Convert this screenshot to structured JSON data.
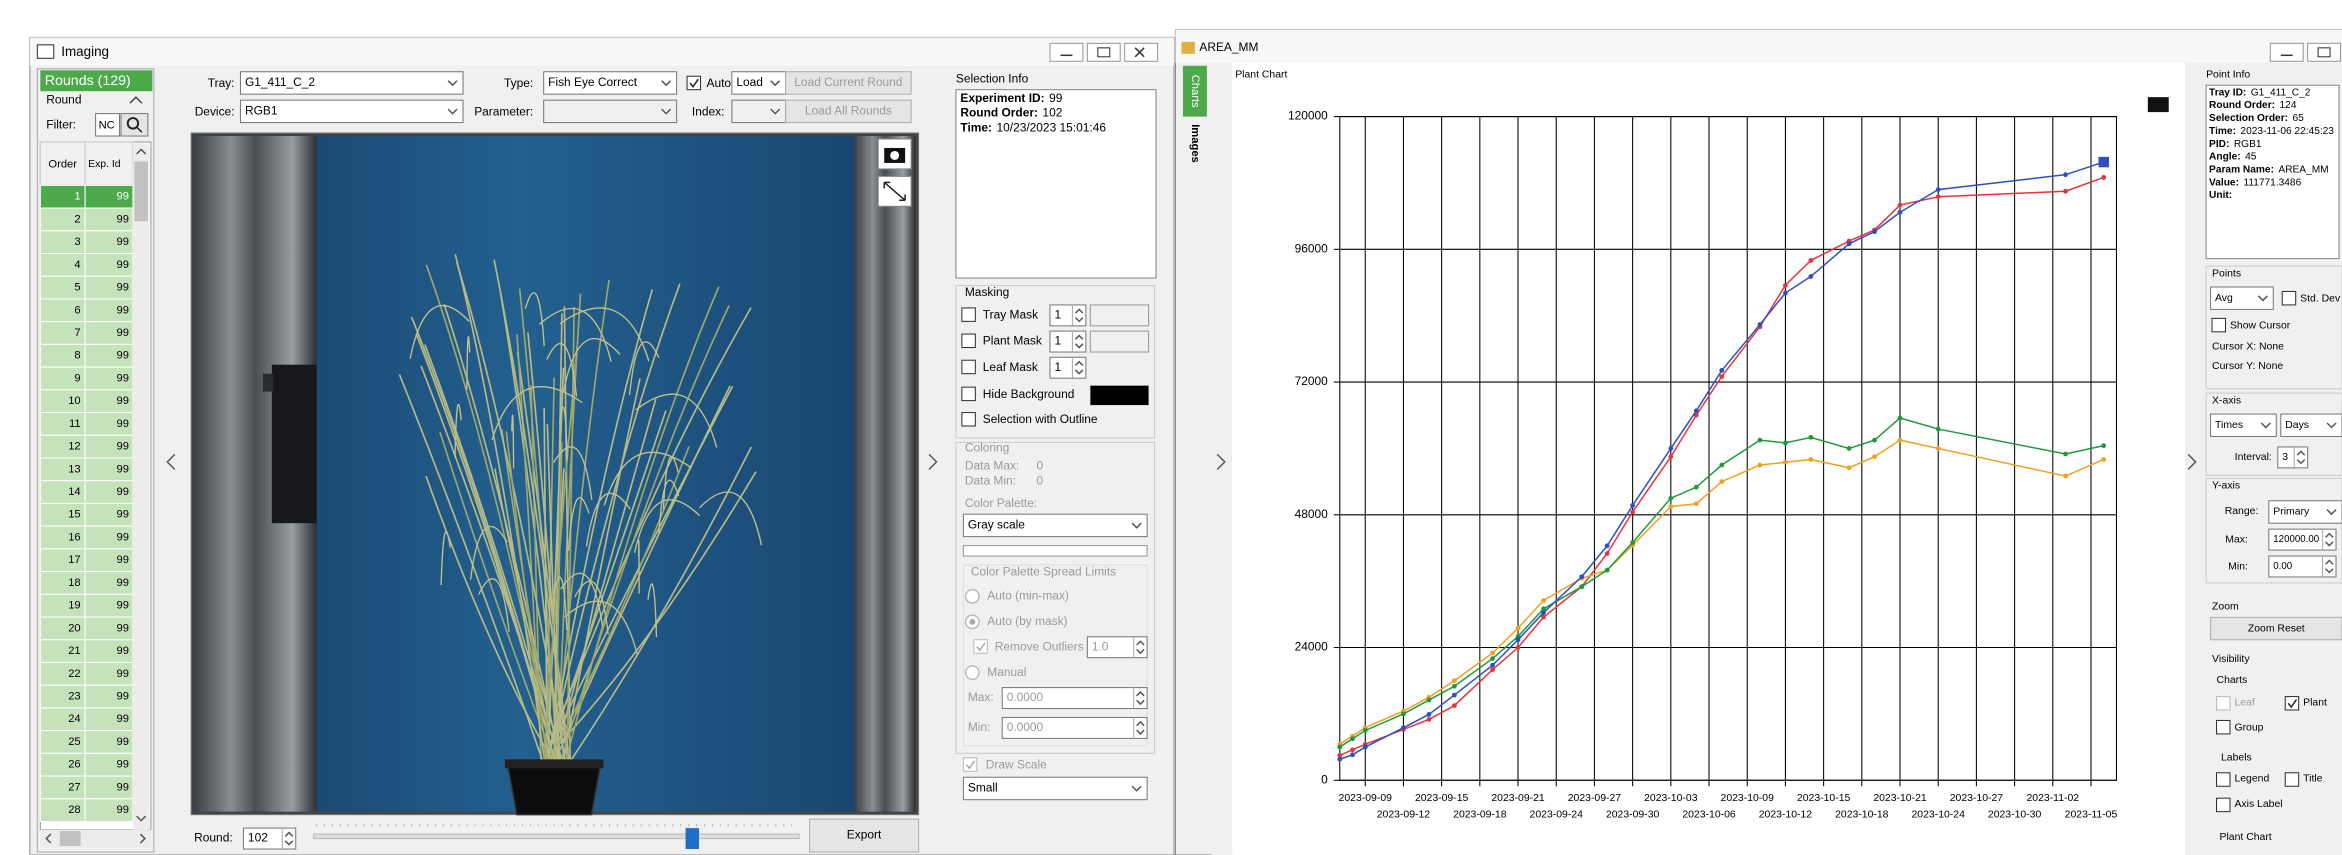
{
  "imaging": {
    "title": "Imaging",
    "rounds": {
      "header": "Rounds (129)",
      "label": "Round",
      "filter_label": "Filter:",
      "filter_value": "NC",
      "columns": [
        "Order",
        "Exp. Id"
      ],
      "rows": [
        [
          1,
          99
        ],
        [
          2,
          99
        ],
        [
          3,
          99
        ],
        [
          4,
          99
        ],
        [
          5,
          99
        ],
        [
          6,
          99
        ],
        [
          7,
          99
        ],
        [
          8,
          99
        ],
        [
          9,
          99
        ],
        [
          10,
          99
        ],
        [
          11,
          99
        ],
        [
          12,
          99
        ],
        [
          13,
          99
        ],
        [
          14,
          99
        ],
        [
          15,
          99
        ],
        [
          16,
          99
        ],
        [
          17,
          99
        ],
        [
          18,
          99
        ],
        [
          19,
          99
        ],
        [
          20,
          99
        ],
        [
          21,
          99
        ],
        [
          22,
          99
        ],
        [
          23,
          99
        ],
        [
          24,
          99
        ],
        [
          25,
          99
        ],
        [
          26,
          99
        ],
        [
          27,
          99
        ],
        [
          28,
          99
        ]
      ]
    },
    "tray_label": "Tray:",
    "tray": "G1_411_C_2",
    "type_label": "Type:",
    "type": "Fish Eye Correct",
    "auto": "Auto",
    "load": "Load",
    "load_current": "Load Current Round",
    "device_label": "Device:",
    "device": "RGB1",
    "parameter_label": "Parameter:",
    "index_label": "Index:",
    "load_all": "Load All Rounds",
    "round_label": "Round:",
    "round": 102,
    "export": "Export"
  },
  "selection_info": {
    "title": "Selection Info",
    "items": [
      {
        "key": "Experiment ID:",
        "value": 99
      },
      {
        "key": "Round Order:",
        "value": 102
      },
      {
        "key": "Time:",
        "value": "10/23/2023 15:01:46"
      }
    ]
  },
  "masking": {
    "title": "Masking",
    "items": [
      {
        "label": "Tray Mask",
        "value": 1
      },
      {
        "label": "Plant Mask",
        "value": 1
      },
      {
        "label": "Leaf Mask",
        "value": 1
      }
    ],
    "hide_background": "Hide Background",
    "selection_outline": "Selection with Outline"
  },
  "coloring": {
    "title": "Coloring",
    "data_max_label": "Data Max:",
    "data_max": 0,
    "data_min_label": "Data Min:",
    "data_min": 0,
    "palette_label": "Color Palette:",
    "palette": "Gray scale",
    "spread_title": "Color Palette Spread Limits",
    "auto_minmax": "Auto (min-max)",
    "auto_mask": "Auto (by mask)",
    "remove_outliers": "Remove Outliers",
    "outliers": "1.0",
    "manual": "Manual",
    "max_label": "Max:",
    "max": "0.0000",
    "min_label": "Min:",
    "min": "0.0000",
    "draw_scale": "Draw Scale",
    "scale_size": "Small"
  },
  "chart_window": {
    "title": "AREA_MM",
    "tabs": [
      "Charts",
      "Images"
    ]
  },
  "chart_data": {
    "type": "line",
    "title": "Plant Chart",
    "x": [
      "2023-09-07",
      "2023-09-08",
      "2023-09-09",
      "2023-09-12",
      "2023-09-14",
      "2023-09-16",
      "2023-09-19",
      "2023-09-21",
      "2023-09-23",
      "2023-09-26",
      "2023-09-28",
      "2023-09-30",
      "2023-10-03",
      "2023-10-05",
      "2023-10-07",
      "2023-10-10",
      "2023-10-12",
      "2023-10-14",
      "2023-10-17",
      "2023-10-19",
      "2023-10-21",
      "2023-10-24",
      "2023-11-03",
      "2023-11-06"
    ],
    "xlim": [
      "2023-09-07",
      "2023-11-07"
    ],
    "xticks": [
      "2023-09-09",
      "2023-09-12",
      "2023-09-15",
      "2023-09-18",
      "2023-09-21",
      "2023-09-24",
      "2023-09-27",
      "2023-09-30",
      "2023-10-03",
      "2023-10-06",
      "2023-10-09",
      "2023-10-12",
      "2023-10-15",
      "2023-10-18",
      "2023-10-21",
      "2023-10-24",
      "2023-10-27",
      "2023-10-30",
      "2023-11-02",
      "2023-11-05"
    ],
    "ylim": [
      0,
      120000
    ],
    "yticks": [
      0,
      24000,
      48000,
      72000,
      96000,
      120000
    ],
    "grid": true,
    "series": [
      {
        "color": "#e8333a",
        "values": [
          4500,
          5500,
          6500,
          9200,
          11000,
          13500,
          20000,
          24000,
          29500,
          35000,
          41000,
          48500,
          58500,
          66000,
          73000,
          82000,
          89500,
          94000,
          97500,
          99500,
          104000,
          105500,
          106500,
          109000
        ]
      },
      {
        "color": "#f0a020",
        "values": [
          6500,
          8000,
          9500,
          12500,
          15000,
          18000,
          23000,
          27500,
          32500,
          36500,
          38000,
          42500,
          49500,
          50000,
          54000,
          57000,
          57500,
          58000,
          56500,
          58500,
          61500,
          60000,
          55000,
          58000
        ]
      },
      {
        "color": "#1f9a3a",
        "values": [
          6000,
          7500,
          9000,
          12000,
          14500,
          17000,
          22000,
          26000,
          31000,
          35000,
          38000,
          43000,
          51000,
          53000,
          57000,
          61500,
          61000,
          62000,
          60000,
          61500,
          65500,
          63500,
          59000,
          60500
        ]
      },
      {
        "color": "#2f4fbf",
        "values": [
          3800,
          4600,
          6000,
          9500,
          11900,
          15400,
          20800,
          25400,
          30300,
          36800,
          42400,
          49700,
          60000,
          66800,
          74100,
          82400,
          88100,
          91100,
          97000,
          99200,
          102700,
          106800,
          109500,
          111771.3486
        ]
      }
    ]
  },
  "point_info": {
    "title": "Point Info",
    "items": [
      {
        "key": "Tray ID:",
        "value": "G1_411_C_2"
      },
      {
        "key": "Round Order:",
        "value": 124
      },
      {
        "key": "Selection Order:",
        "value": 65
      },
      {
        "key": "Time:",
        "value": "2023-11-06 22:45:23"
      },
      {
        "key": "PID:",
        "value": "RGB1"
      },
      {
        "key": "Angle:",
        "value": 45
      },
      {
        "key": "Param Name:",
        "value": "AREA_MM"
      },
      {
        "key": "Value:",
        "value": 111771.3486
      },
      {
        "key": "Unit:"
      }
    ]
  },
  "settings": {
    "points": "Points",
    "avg": "Avg",
    "std_dev": "Std. Dev",
    "show_cursor": "Show Cursor",
    "cursor_x": "Cursor X: None",
    "cursor_y": "Cursor Y: None",
    "x_axis": "X-axis",
    "times": "Times",
    "days": "Days",
    "interval_label": "Interval:",
    "interval": 3,
    "y_axis": "Y-axis",
    "range_label": "Range:",
    "range": "Primary",
    "max_label": "Max:",
    "max": "120000.00",
    "min_label": "Min:",
    "min": "0.00",
    "zoom": "Zoom",
    "zoom_reset": "Zoom Reset",
    "visibility": "Visibility",
    "charts": "Charts",
    "leaf": "Leaf",
    "plant": "Plant",
    "group": "Group",
    "labels": "Labels",
    "legend": "Legend",
    "title": "Title",
    "axis_label": "Axis Label",
    "plant_chart": "Plant Chart"
  }
}
